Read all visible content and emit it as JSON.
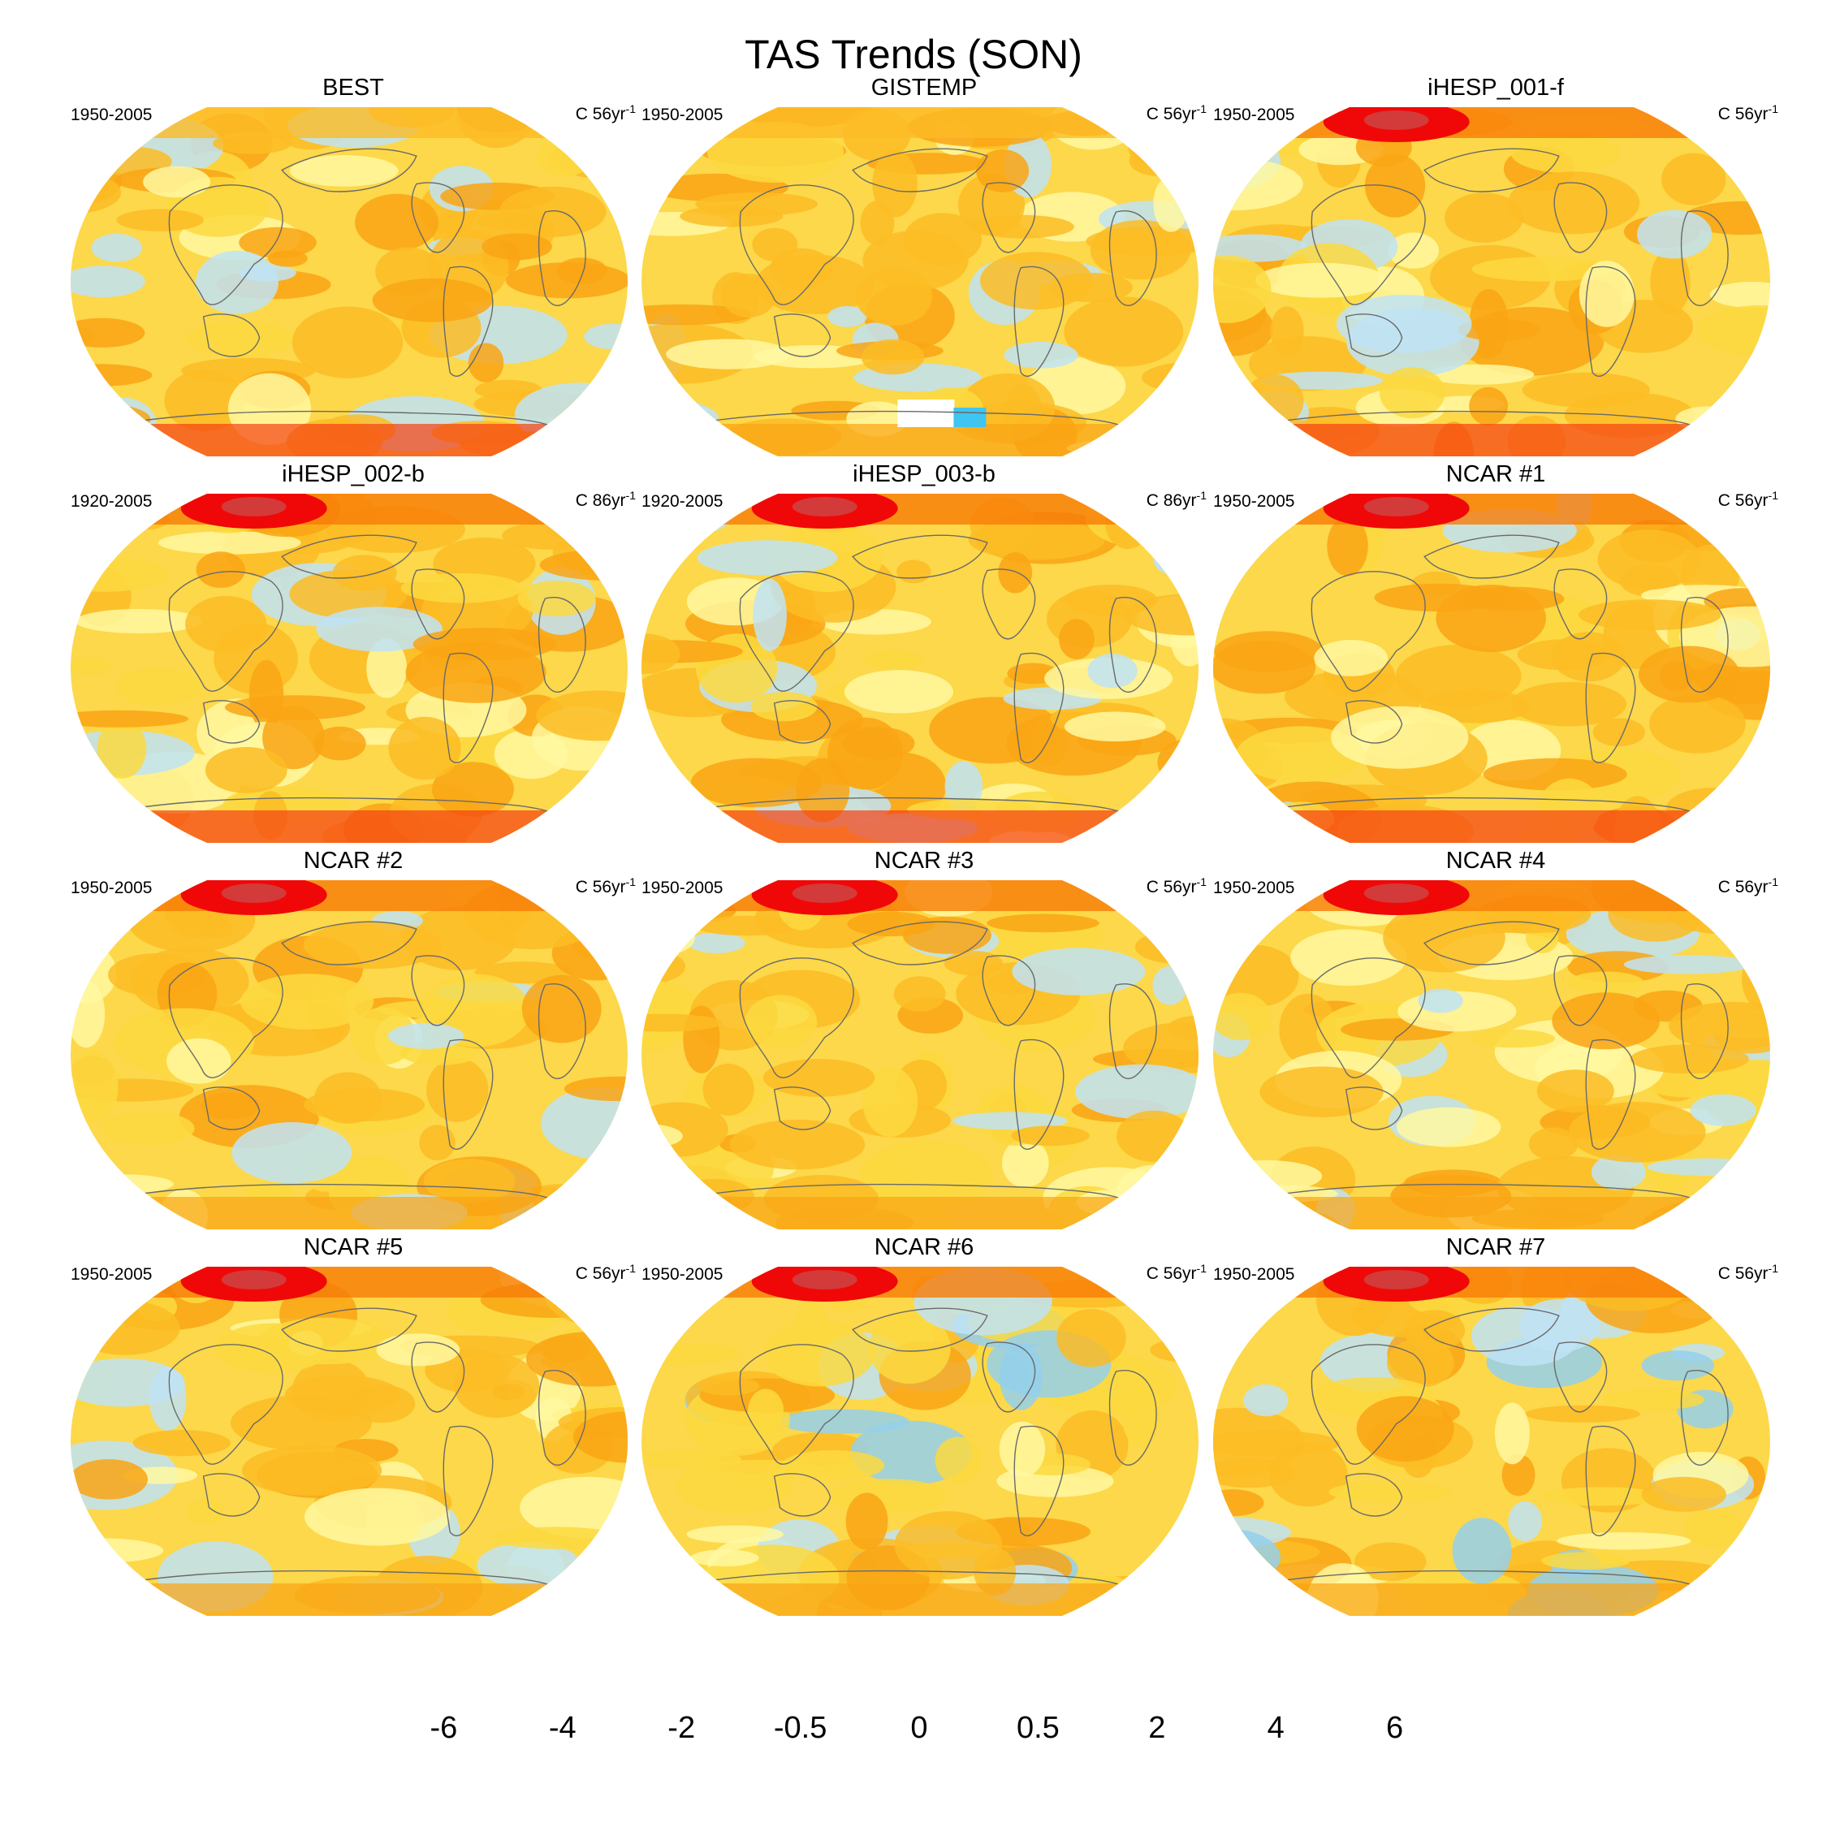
{
  "title": "TAS Trends (SON)",
  "units_prefix": "C ",
  "units_suffix": "yr",
  "units_exp": "-1",
  "colors": {
    "ocean_base": "#fcd84a",
    "coast": "#6a6a6a",
    "levels": [
      "#8a2be2",
      "#3a18f0",
      "#1020f0",
      "#3a5ad8",
      "#2e74e8",
      "#2894f0",
      "#08b0f0",
      "#40c4f0",
      "#94d0ec",
      "#bfe3f5",
      "#fff8a0",
      "#fcd940",
      "#fcbc25",
      "#f9a414",
      "#f87c08",
      "#f54012",
      "#f00808",
      "#cc0000",
      "#d33a3a",
      "#f7b6b6"
    ]
  },
  "colorbar": {
    "labels": [
      "-6",
      "-4",
      "-2",
      "-0.5",
      "0",
      "0.5",
      "2",
      "4",
      "6"
    ],
    "label_boundaries": [
      2,
      4,
      6,
      8,
      10,
      12,
      14,
      16,
      18
    ]
  },
  "panels": [
    {
      "title": "BEST",
      "period": "1950-2005",
      "years": "56",
      "style": "obs"
    },
    {
      "title": "GISTEMP",
      "period": "1950-2005",
      "years": "56",
      "style": "gis"
    },
    {
      "title": "iHESP_001-f",
      "period": "1950-2005",
      "years": "56",
      "style": "warm"
    },
    {
      "title": "iHESP_002-b",
      "period": "1920-2005",
      "years": "86",
      "style": "warm"
    },
    {
      "title": "iHESP_003-b",
      "period": "1920-2005",
      "years": "86",
      "style": "warm"
    },
    {
      "title": "NCAR #1",
      "period": "1950-2005",
      "years": "56",
      "style": "warm"
    },
    {
      "title": "NCAR #2",
      "period": "1950-2005",
      "years": "56",
      "style": "model"
    },
    {
      "title": "NCAR #3",
      "period": "1950-2005",
      "years": "56",
      "style": "model"
    },
    {
      "title": "NCAR #4",
      "period": "1950-2005",
      "years": "56",
      "style": "model"
    },
    {
      "title": "NCAR #5",
      "period": "1950-2005",
      "years": "56",
      "style": "model"
    },
    {
      "title": "NCAR #6",
      "period": "1950-2005",
      "years": "56",
      "style": "cool"
    },
    {
      "title": "NCAR #7",
      "period": "1950-2005",
      "years": "56",
      "style": "cool"
    }
  ],
  "chart_data": {
    "type": "heatmap",
    "title": "TAS Trends (SON)",
    "panel_titles": [
      "BEST",
      "GISTEMP",
      "iHESP_001-f",
      "iHESP_002-b",
      "iHESP_003-b",
      "NCAR #1",
      "NCAR #2",
      "NCAR #3",
      "NCAR #4",
      "NCAR #5",
      "NCAR #6",
      "NCAR #7"
    ],
    "colorbar_tick_labels": [
      "-6",
      "-4",
      "-2",
      "-0.5",
      "0",
      "0.5",
      "2",
      "4",
      "6"
    ],
    "grid": false,
    "legend": "bottom"
  }
}
